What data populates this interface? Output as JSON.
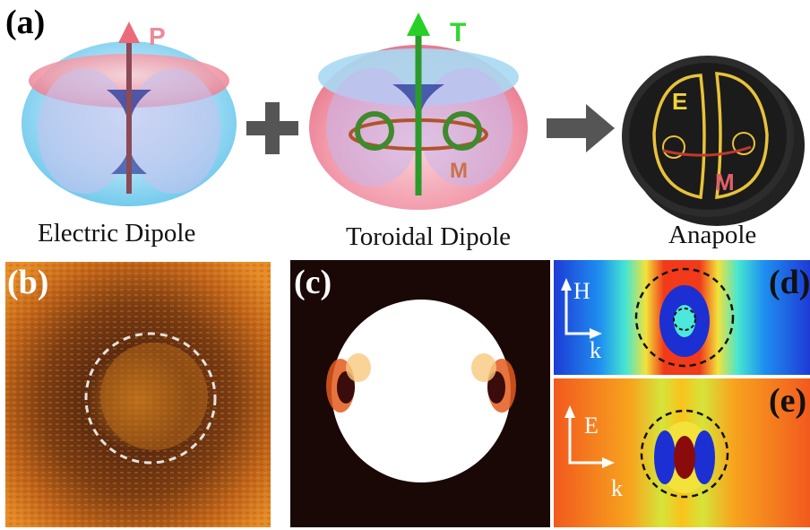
{
  "panel_a": {
    "label": "(a)",
    "items": [
      {
        "caption": "Electric Dipole",
        "arrow_label": "P"
      },
      {
        "caption": "Toroidal Dipole",
        "arrow_label": "T",
        "loop_label": "M"
      },
      {
        "caption": "Anapole",
        "labels": [
          "E",
          "M"
        ]
      }
    ],
    "operator_plus": "+",
    "colors": {
      "pink": "#f08c9c",
      "blue": "#8fd6f5",
      "green": "#2fcf2f",
      "yellow": "#f2d23c",
      "red_label": "#e06a5a"
    }
  },
  "panel_b": {
    "label": "(b)"
  },
  "panel_c": {
    "label": "(c)"
  },
  "panel_d": {
    "label": "(d)",
    "axis_v": "H",
    "axis_h": "k"
  },
  "panel_e": {
    "label": "(e)",
    "axis_v": "E",
    "axis_h": "k"
  }
}
